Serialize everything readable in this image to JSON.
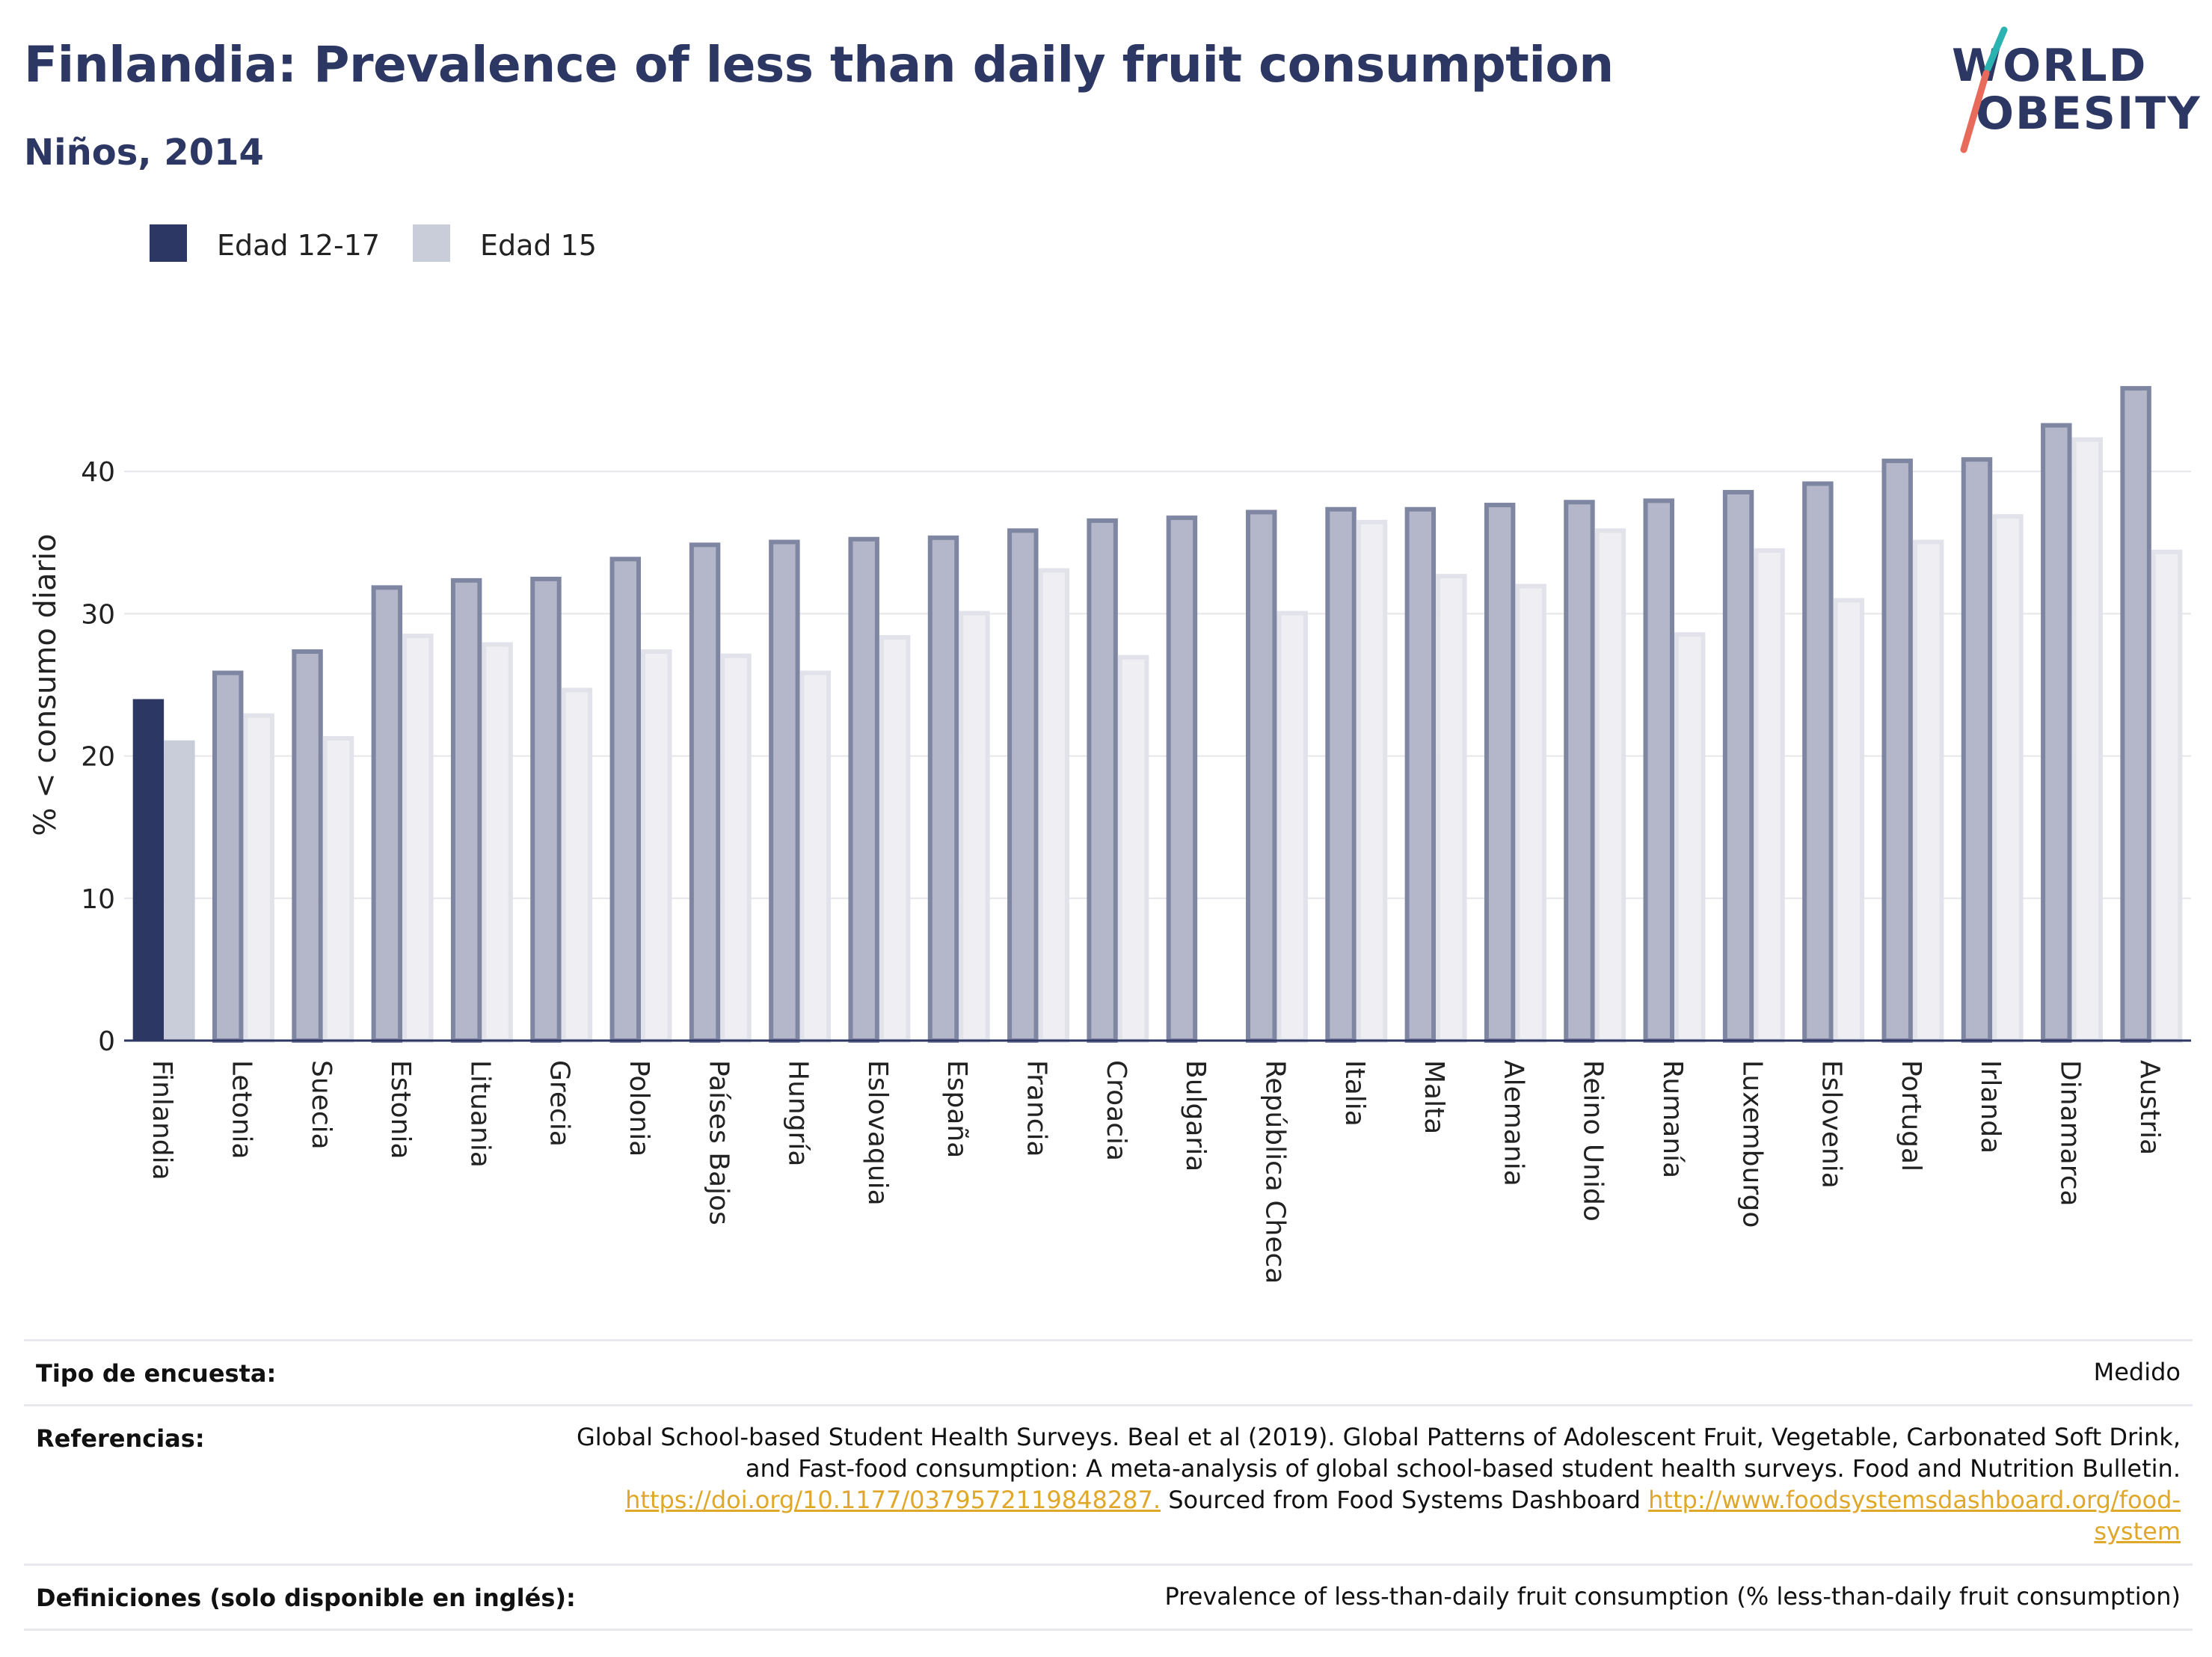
{
  "header": {
    "title": "Finlandia: Prevalence of less than daily fruit consumption",
    "subtitle": "Niños, 2014"
  },
  "logo": {
    "line1": "WORLD",
    "line2": "OBESITY"
  },
  "colors": {
    "series1": "#2c3764",
    "series2": "#c9ccd9",
    "text": "#2c3764",
    "link": "#e0a82a",
    "logo_slash_top": "#2bb3b1",
    "logo_slash_bottom": "#e76a5a"
  },
  "chart_data": {
    "type": "bar",
    "ylabel": "% < consumo diario",
    "ylim": [
      0,
      50
    ],
    "yticks": [
      0,
      10,
      20,
      30,
      40
    ],
    "grid": true,
    "legend_position": "top-left",
    "highlight": "Finlandia",
    "categories": [
      "Finlandia",
      "Letonia",
      "Suecia",
      "Estonia",
      "Lituania",
      "Grecia",
      "Polonia",
      "Países Bajos",
      "Hungría",
      "Eslovaquia",
      "España",
      "Francia",
      "Croacia",
      "Bulgaria",
      "República Checa",
      "Italia",
      "Malta",
      "Alemania",
      "Reino Unido",
      "Rumanía",
      "Luxemburgo",
      "Eslovenia",
      "Portugal",
      "Irlanda",
      "Dinamarca",
      "Austria"
    ],
    "series": [
      {
        "name": "Edad 12-17",
        "values": [
          24,
          26,
          27.5,
          32,
          32.5,
          32.6,
          34,
          35,
          35.2,
          35.4,
          35.5,
          36,
          36.7,
          36.9,
          37.3,
          37.5,
          37.5,
          37.8,
          38,
          38.1,
          38.7,
          39.3,
          40.9,
          41,
          43.4,
          46
        ]
      },
      {
        "name": "Edad 15",
        "values": [
          21.1,
          23,
          21.4,
          28.6,
          28,
          24.8,
          27.5,
          27.2,
          26,
          28.5,
          30.2,
          33.2,
          27.1,
          null,
          30.2,
          36.6,
          32.8,
          32.1,
          36,
          28.7,
          34.6,
          31.1,
          35.2,
          37,
          42.4,
          34.5
        ]
      }
    ]
  },
  "footer": {
    "survey_label": "Tipo de encuesta:",
    "survey_value": "Medido",
    "refs_label": "Referencias:",
    "refs_line1": "Global School-based Student Health Surveys. Beal et al (2019). Global Patterns of Adolescent Fruit, Vegetable, Carbonated Soft Drink,",
    "refs_line2": "and Fast-food consumption: A meta-analysis of global school-based student health surveys. Food and Nutrition Bulletin.",
    "refs_link1": "https://doi.org/10.1177/0379572119848287.",
    "refs_mid": " Sourced from Food Systems Dashboard ",
    "refs_link2a": "http://www.foodsystemsdashboard.org/food-",
    "refs_link2b": "system",
    "def_label": "Definiciones (solo disponible en inglés):",
    "def_value": "Prevalence of less-than-daily fruit consumption (% less-than-daily fruit consumption)"
  }
}
